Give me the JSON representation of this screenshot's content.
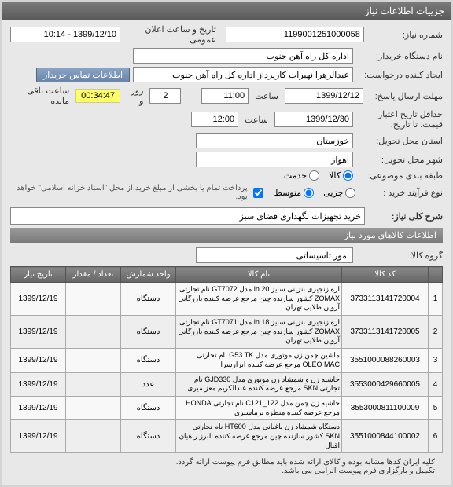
{
  "panel_title": "جزییات اطلاعات نیاز",
  "labels": {
    "need_number": "شماره نیاز:",
    "buyer_org": "نام دستگاه خریدار:",
    "creator": "ایجاد کننده درخواست:",
    "deadline": "مهلت ارسال پاسخ:",
    "price_valid": "حداقل تاریخ اعتبار قیمت: تا تاریخ:",
    "province": "استان محل تحویل:",
    "city": "شهر محل تحویل:",
    "budget_row": "طبقه بندی موضوعی:",
    "process_type": "نوع فرآیند خرید :",
    "main_desc": "شرح کلی نیاز:",
    "goods_group": "گروه کالا:",
    "announce": "تاریخ و ساعت اعلان عمومی:",
    "hour": "ساعت",
    "day_and": "روز و",
    "remain": "ساعت باقی مانده",
    "contact_btn": "اطلاعات تماس خریدار"
  },
  "values": {
    "need_number": "1199001251000058",
    "buyer_org": "اداره کل راه آهن جنوب",
    "creator": "عبدالزهرا نهیرات کارپرداز اداره کل راه آهن جنوب",
    "deadline_date": "1399/12/12",
    "deadline_time": "11:00",
    "price_valid_date": "1399/12/30",
    "price_valid_time": "12:00",
    "province": "خوزستان",
    "city": "اهواز",
    "announce": "1399/12/10 - 10:14",
    "days_remain": "2",
    "time_remain": "00:34:47",
    "main_desc": "خرید تجهیزات نگهداری فضای سبز",
    "goods_group": "امور تاسیساتی"
  },
  "budget_options": {
    "goods": "کالا",
    "service": "خدمت"
  },
  "budget_selected": "goods",
  "process_options": {
    "trivial": "جزیی",
    "medium": "متوسط"
  },
  "process_selected": "medium",
  "process_note": "پرداخت تمام یا بخشی از مبلغ خرید،از محل \"اسناد خزانه اسلامی\" خواهد بود.",
  "section_goods_title": "اطلاعات کالاهای مورد نیاز",
  "table": {
    "headers": {
      "idx": "",
      "code": "کد کالا",
      "name": "نام کالا",
      "unit": "واحد شمارش",
      "qty": "تعداد / مقدار",
      "date": "تاریخ نیاز"
    },
    "rows": [
      {
        "idx": "1",
        "code": "3733113141720004",
        "name": "اره زنجیری بنزینی سایز 20 in مدل GT7072 نام تجارتی ZOMAX کشور سازنده چین مرجع عرضه کننده بازرگانی آروین طلایی تهران",
        "unit": "دستگاه",
        "qty": "",
        "date": "1399/12/19"
      },
      {
        "idx": "2",
        "code": "3733113141720005",
        "name": "اره زنجیری بنزینی سایز 18 in مدل GT7071 نام تجارتی ZOMAX کشور سازنده چین مرجع عرضه کننده بازرگانی آروین طلایی تهران",
        "unit": "دستگاه",
        "qty": "",
        "date": "1399/12/19"
      },
      {
        "idx": "3",
        "code": "3551000088260003",
        "name": "ماشین چمن زن موتوری مدل G53 TK نام تجارتی OLEO MAC مرجع عرضه کننده ابزارسرا",
        "unit": "دستگاه",
        "qty": "",
        "date": "1399/12/19"
      },
      {
        "idx": "4",
        "code": "3553000429660005",
        "name": "حاشیه زن و شمشاد زن موتوری مدل GJD330 نام تجارتی SKN مرجع عرضه کننده عبدالکریم معز میری",
        "unit": "عدد",
        "qty": "",
        "date": "1399/12/19"
      },
      {
        "idx": "5",
        "code": "3553000811100009",
        "name": "حاشیه زن چمن مدل C121_122 نام تجارتی HONDA مرجع عرضه کننده منظره برماشیری",
        "unit": "دستگاه",
        "qty": "",
        "date": "1399/12/19"
      },
      {
        "idx": "6",
        "code": "3551000844100002",
        "name": "دستگاه شمشاد زن باغبانی مدل HT600 نام تجارتی SKN کشور سازنده چین مرجع عرضه کننده البرز راهیان اقبال",
        "unit": "دستگاه",
        "qty": "",
        "date": "1399/12/19"
      }
    ]
  },
  "footer": {
    "line1": "کلیه ایران کدها مشابه بوده و کالای ارائه شده باید مطابق فرم پیوست ارائه گردد.",
    "line2": "تکمیل و بارگزاری فرم پیوست الزامی می باشد."
  },
  "colors": {
    "header_bg": "#6a6a6a",
    "countdown_bg": "#ffff66"
  }
}
